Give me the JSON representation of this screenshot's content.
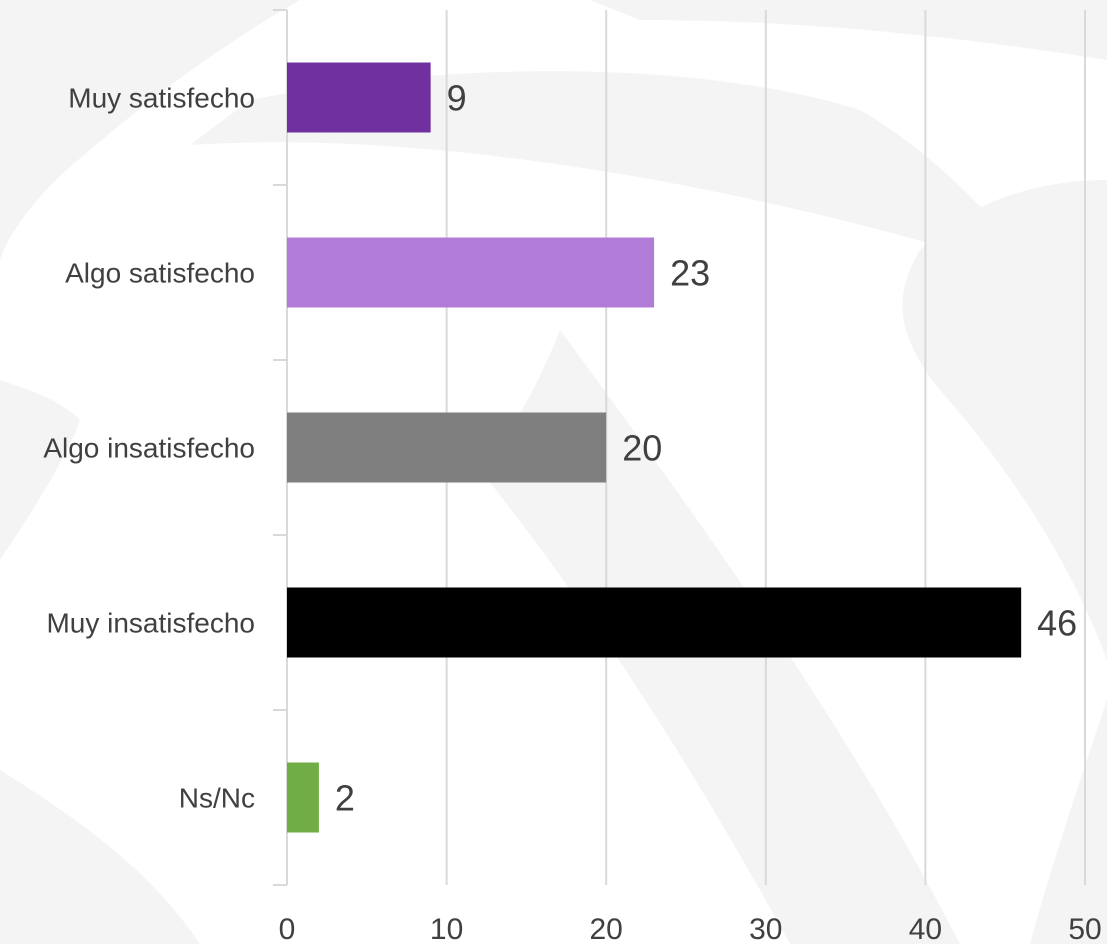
{
  "chart_data": {
    "type": "bar",
    "orientation": "horizontal",
    "categories": [
      "Muy satisfecho",
      "Algo satisfecho",
      "Algo insatisfecho",
      "Muy insatisfecho",
      "Ns/Nc"
    ],
    "values": [
      9,
      23,
      20,
      46,
      2
    ],
    "bar_colors": [
      "#7030a0",
      "#b07cd8",
      "#7f7f7f",
      "#000000",
      "#70ad47"
    ],
    "data_labels": [
      "9",
      "23",
      "20",
      "46",
      "2"
    ],
    "xlim": [
      0,
      50
    ],
    "x_ticks": [
      0,
      10,
      20,
      30,
      40,
      50
    ],
    "x_tick_labels": [
      "0",
      "10",
      "20",
      "30",
      "40",
      "50"
    ],
    "grid": "vertical",
    "legend": "none",
    "title": "",
    "xlabel": "",
    "ylabel": ""
  },
  "colors": {
    "background": "#ffffff",
    "watermark": "#f4f4f4",
    "gridline": "#d9d9d9",
    "axis": "#d9d9d9",
    "text": "#404040"
  }
}
